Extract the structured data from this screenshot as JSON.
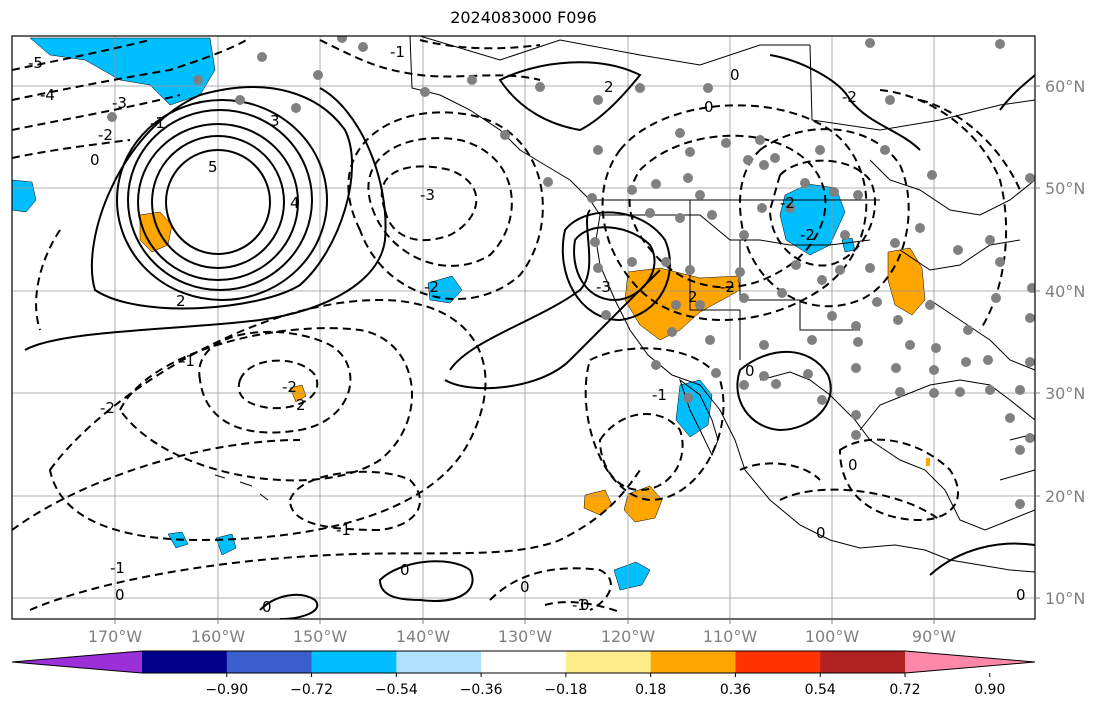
{
  "title": "2024083000 F096",
  "map": {
    "lon_labels": [
      "170°W",
      "160°W",
      "150°W",
      "140°W",
      "130°W",
      "120°W",
      "110°W",
      "100°W",
      "90°W"
    ],
    "lat_labels": [
      "60°N",
      "50°N",
      "40°N",
      "30°N",
      "20°N",
      "10°N"
    ],
    "contour_labels": [
      "-5",
      "-4",
      "-3",
      "-2",
      "-1",
      "0",
      "5",
      "4",
      "3",
      "2",
      "-3",
      "-2",
      "-2",
      "2",
      "-2",
      "-1",
      "-1",
      "0",
      "0",
      "-1",
      "0",
      "-3",
      "2",
      "0",
      "0",
      "-2",
      "-1",
      "-2",
      "0",
      "0",
      "-2",
      "2",
      "-2",
      "0",
      "-1",
      "-1",
      "0",
      "0",
      "0"
    ],
    "point_color": "#808080"
  },
  "colorbar": {
    "colors": [
      "#9b30d9",
      "#00008b",
      "#3a5fcd",
      "#00bfff",
      "#b0e2ff",
      "#ffffff",
      "#ffec8b",
      "#ffa500",
      "#ff3300",
      "#b22222",
      "#ff88aa"
    ],
    "labels": [
      "−0.90",
      "−0.72",
      "−0.54",
      "−0.36",
      "−0.18",
      "0.18",
      "0.36",
      "0.54",
      "0.72",
      "0.90"
    ]
  }
}
